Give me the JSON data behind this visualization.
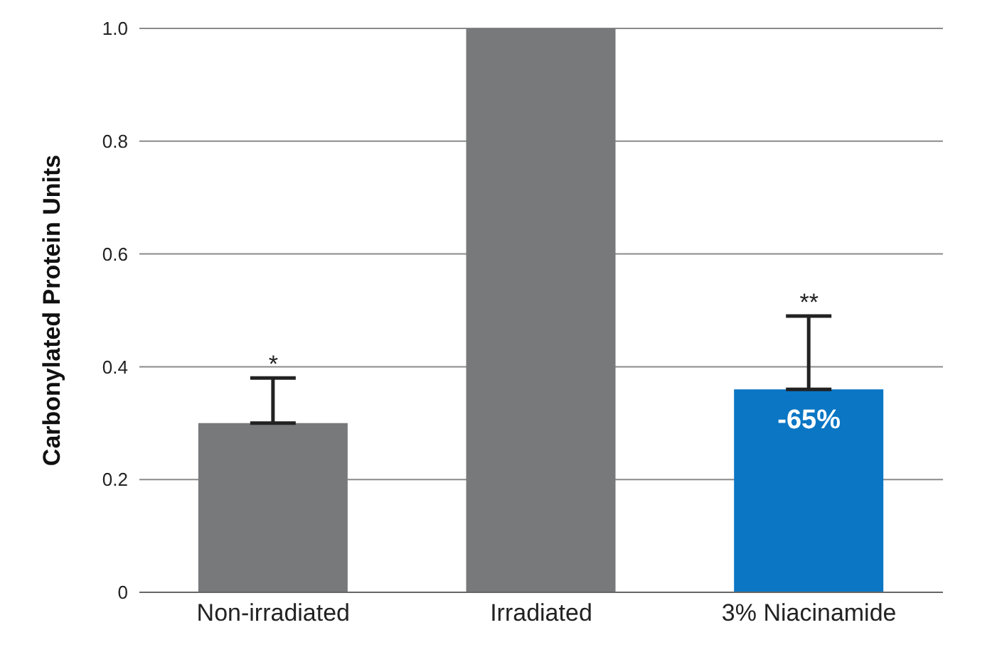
{
  "chart_data": {
    "type": "bar",
    "ylabel": "Carbonylated Protein Units",
    "categories": [
      "Non-irradiated",
      "Irradiated",
      "3% Niacinamide"
    ],
    "values": [
      0.3,
      1.0,
      0.36
    ],
    "colors": [
      "#77797b",
      "#77797b",
      "#0a76c4"
    ],
    "errors": [
      [
        0.3,
        0.38
      ],
      null,
      [
        0.36,
        0.49
      ]
    ],
    "ylim": [
      0,
      1.0
    ],
    "yticks": [
      0,
      {
        "value": 0.2,
        "label": "0.2"
      },
      {
        "value": 0.4,
        "label": "0.4"
      },
      {
        "value": 0.6,
        "label": "0.6"
      },
      {
        "value": 0.8,
        "label": "0.8"
      },
      {
        "value": 1.0,
        "label": "1.0"
      }
    ],
    "grid": "y",
    "annotations": [
      {
        "text": "*",
        "x": "Non-irradiated",
        "y": 0.38
      },
      {
        "text": "**",
        "x": "3% Niacinamide",
        "y": 0.49
      },
      {
        "text": "-65%",
        "x": "3% Niacinamide",
        "y": 0.36
      }
    ]
  }
}
